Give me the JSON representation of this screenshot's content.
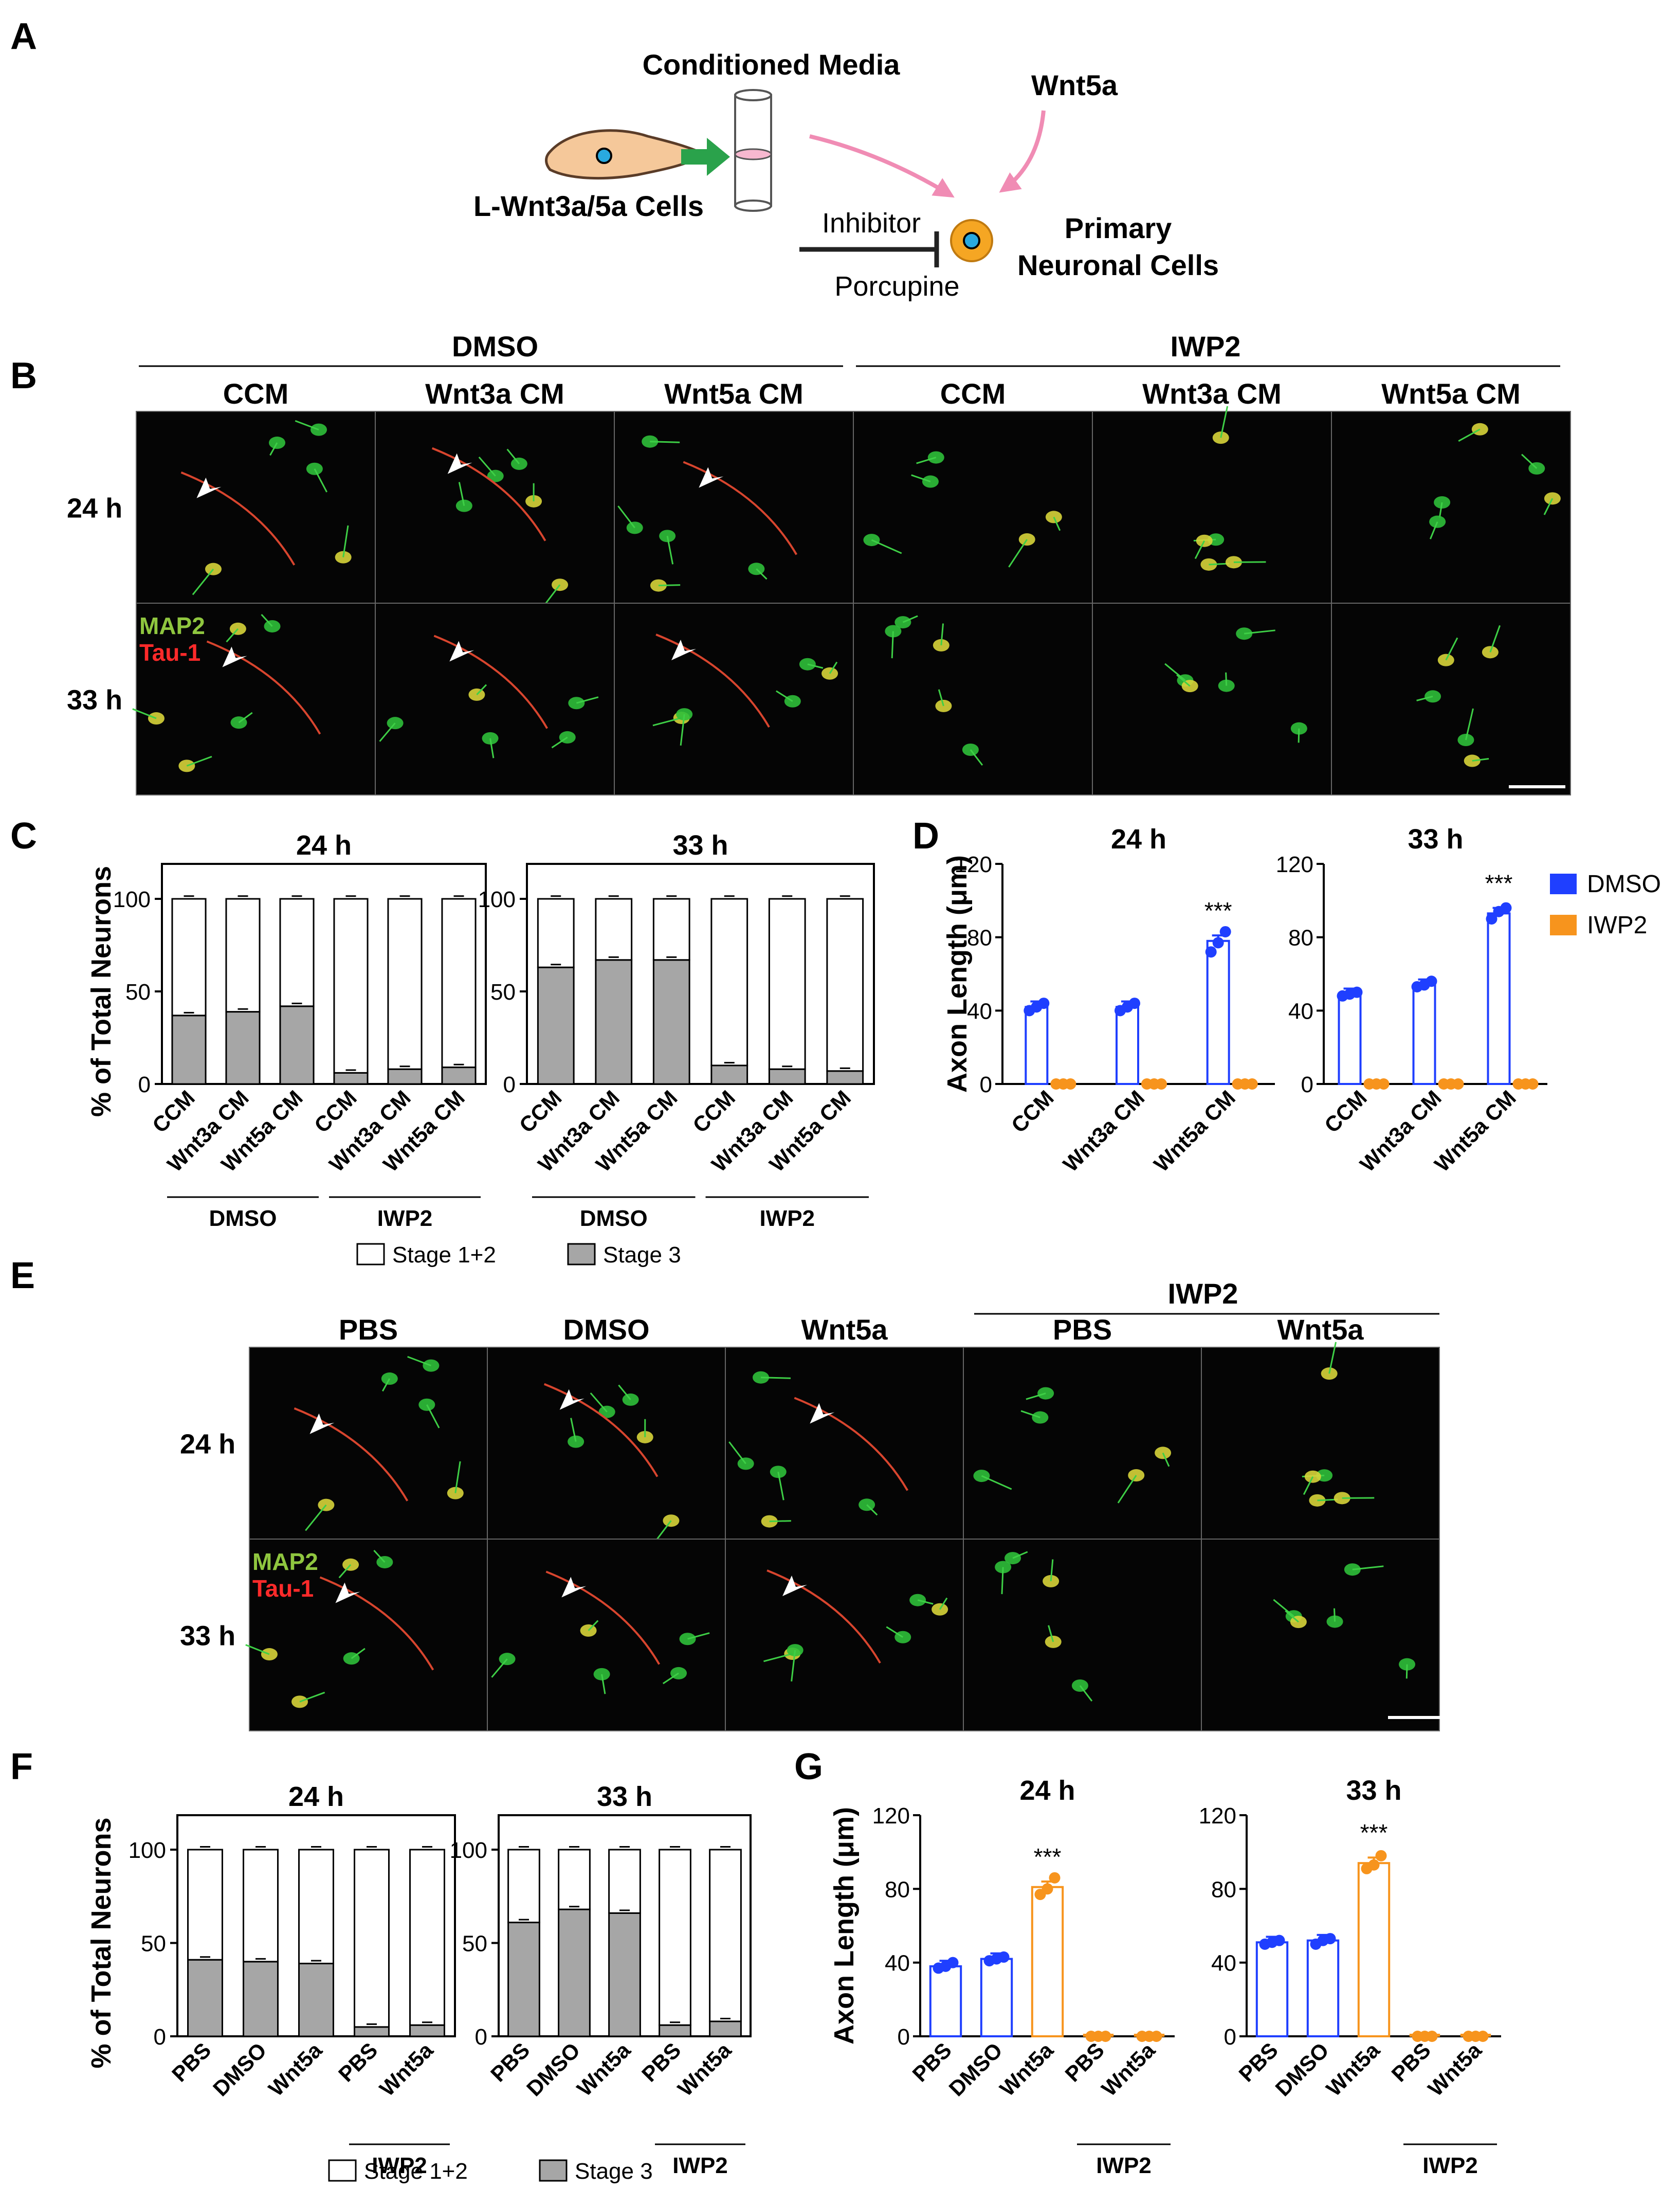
{
  "panel_letters": {
    "a": "A",
    "b": "B",
    "c": "C",
    "d": "D",
    "e": "E",
    "f": "F",
    "g": "G"
  },
  "schematic": {
    "cm_label": "Conditioned Media",
    "wnt5a_label": "Wnt5a",
    "cells_label": "L-Wnt3a/5a Cells",
    "inhibitor_label": "Inhibitor",
    "porcupine_label": "Porcupine",
    "neuron_label_1": "Primary",
    "neuron_label_2": "Neuronal Cells",
    "colors": {
      "cell_fill": "#f5c89a",
      "nucleus": "#29a9e0",
      "arrow_green": "#2aa24b",
      "arrow_pink": "#f08cb4",
      "neuron_fill": "#f5a623"
    }
  },
  "micrographs_b": {
    "group_dmso": "DMSO",
    "group_iwp2": "IWP2",
    "columns": [
      "CCM",
      "Wnt3a CM",
      "Wnt5a CM",
      "CCM",
      "Wnt3a CM",
      "Wnt5a CM"
    ],
    "rows": [
      "24 h",
      "33 h"
    ],
    "stain_map2": "MAP2",
    "stain_tau": "Tau-1"
  },
  "micrographs_e": {
    "group_iwp2": "IWP2",
    "columns": [
      "PBS",
      "DMSO",
      "Wnt5a",
      "PBS",
      "Wnt5a"
    ],
    "rows": [
      "24 h",
      "33 h"
    ],
    "stain_map2": "MAP2",
    "stain_tau": "Tau-1"
  },
  "chart_data": [
    {
      "panel": "C",
      "type": "bar",
      "stacked": true,
      "ylabel": "% of Total Neurons",
      "ylim": [
        0,
        100
      ],
      "yticks": [
        0,
        50,
        100
      ],
      "subplots": [
        {
          "title": "24 h",
          "categories": [
            "CCM",
            "Wnt3a CM",
            "Wnt5a CM",
            "CCM",
            "Wnt3a CM",
            "Wnt5a CM"
          ],
          "series": [
            {
              "name": "Stage 3",
              "values": [
                37,
                39,
                42,
                6,
                8,
                9
              ]
            },
            {
              "name": "Stage 1+2",
              "values": [
                63,
                61,
                58,
                94,
                92,
                91
              ]
            }
          ]
        },
        {
          "title": "33 h",
          "categories": [
            "CCM",
            "Wnt3a CM",
            "Wnt5a CM",
            "CCM",
            "Wnt3a CM",
            "Wnt5a CM"
          ],
          "series": [
            {
              "name": "Stage 3",
              "values": [
                63,
                67,
                67,
                10,
                8,
                7
              ]
            },
            {
              "name": "Stage 1+2",
              "values": [
                37,
                33,
                33,
                90,
                92,
                93
              ]
            }
          ]
        }
      ],
      "groups": [
        "DMSO",
        "IWP2"
      ],
      "legend": [
        "Stage 1+2",
        "Stage 3"
      ]
    },
    {
      "panel": "D",
      "type": "bar",
      "ylabel": "Axon Length (μm)",
      "ylim": [
        0,
        120
      ],
      "yticks": [
        0,
        40,
        80,
        120
      ],
      "subplots": [
        {
          "title": "24 h",
          "categories": [
            "CCM",
            "Wnt3a CM",
            "Wnt5a CM"
          ],
          "series": [
            {
              "name": "DMSO",
              "values": [
                42,
                42,
                78
              ],
              "points": [
                [
                  40,
                  42,
                  44
                ],
                [
                  40,
                  42,
                  44
                ],
                [
                  72,
                  77,
                  83
                ]
              ]
            },
            {
              "name": "IWP2",
              "values": [
                0,
                0,
                0
              ]
            }
          ],
          "significance": [
            {
              "category": 2,
              "label": "***"
            }
          ]
        },
        {
          "title": "33 h",
          "categories": [
            "CCM",
            "Wnt3a CM",
            "Wnt5a CM"
          ],
          "series": [
            {
              "name": "DMSO",
              "values": [
                49,
                54,
                93
              ],
              "points": [
                [
                  48,
                  49,
                  50
                ],
                [
                  53,
                  54,
                  56
                ],
                [
                  90,
                  94,
                  96
                ]
              ]
            },
            {
              "name": "IWP2",
              "values": [
                0,
                0,
                0
              ]
            }
          ],
          "significance": [
            {
              "category": 2,
              "label": "***"
            }
          ]
        }
      ],
      "legend": [
        "DMSO",
        "IWP2"
      ],
      "colors": {
        "DMSO": "#1f3fff",
        "IWP2": "#f7941d"
      }
    },
    {
      "panel": "F",
      "type": "bar",
      "stacked": true,
      "ylabel": "% of Total Neurons",
      "ylim": [
        0,
        100
      ],
      "yticks": [
        0,
        50,
        100
      ],
      "subplots": [
        {
          "title": "24 h",
          "categories": [
            "PBS",
            "DMSO",
            "Wnt5a",
            "PBS",
            "Wnt5a"
          ],
          "series": [
            {
              "name": "Stage 3",
              "values": [
                41,
                40,
                39,
                5,
                6
              ]
            },
            {
              "name": "Stage 1+2",
              "values": [
                59,
                60,
                61,
                95,
                94
              ]
            }
          ]
        },
        {
          "title": "33 h",
          "categories": [
            "PBS",
            "DMSO",
            "Wnt5a",
            "PBS",
            "Wnt5a"
          ],
          "series": [
            {
              "name": "Stage 3",
              "values": [
                61,
                68,
                66,
                6,
                8
              ]
            },
            {
              "name": "Stage 1+2",
              "values": [
                39,
                32,
                34,
                94,
                92
              ]
            }
          ]
        }
      ],
      "groups": [
        "IWP2"
      ],
      "legend": [
        "Stage 1+2",
        "Stage 3"
      ]
    },
    {
      "panel": "G",
      "type": "bar",
      "ylabel": "Axon Length (μm)",
      "ylim": [
        0,
        120
      ],
      "yticks": [
        0,
        40,
        80,
        120
      ],
      "subplots": [
        {
          "title": "24 h",
          "categories": [
            "PBS",
            "DMSO",
            "Wnt5a",
            "PBS",
            "Wnt5a"
          ],
          "values": [
            38,
            42,
            81,
            0,
            0
          ],
          "points": [
            [
              37,
              38,
              40
            ],
            [
              41,
              42,
              43
            ],
            [
              77,
              80,
              86
            ],
            [
              0,
              0,
              0
            ],
            [
              0,
              0,
              0
            ]
          ],
          "bar_colors": [
            "#1f3fff",
            "#1f3fff",
            "#f7941d",
            "#f7941d",
            "#f7941d"
          ],
          "significance": [
            {
              "category": 2,
              "label": "***"
            }
          ]
        },
        {
          "title": "33 h",
          "categories": [
            "PBS",
            "DMSO",
            "Wnt5a",
            "PBS",
            "Wnt5a"
          ],
          "values": [
            51,
            52,
            94,
            0,
            0
          ],
          "points": [
            [
              50,
              51,
              52
            ],
            [
              50,
              52,
              53
            ],
            [
              91,
              93,
              98
            ],
            [
              0,
              0,
              0
            ],
            [
              0,
              0,
              0
            ]
          ],
          "bar_colors": [
            "#1f3fff",
            "#1f3fff",
            "#f7941d",
            "#f7941d",
            "#f7941d"
          ],
          "significance": [
            {
              "category": 2,
              "label": "***"
            }
          ]
        }
      ],
      "groups": [
        "IWP2"
      ]
    }
  ]
}
